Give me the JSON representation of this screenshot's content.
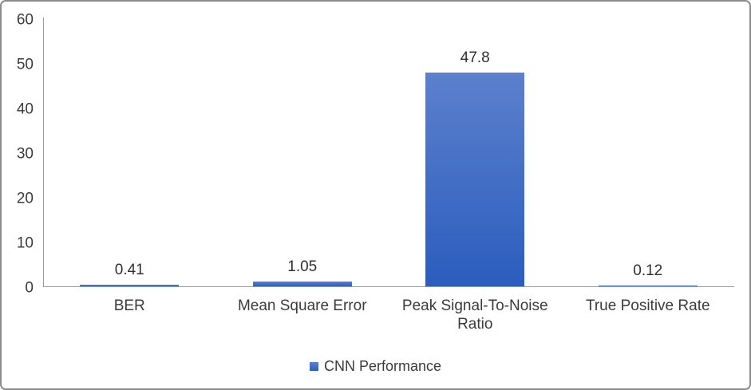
{
  "chart_data": {
    "type": "bar",
    "title": "",
    "categories": [
      "BER",
      "Mean Square Error",
      "Peak Signal-To-Noise Ratio",
      "True Positive Rate"
    ],
    "series": [
      {
        "name": "CNN Performance",
        "values": [
          0.41,
          1.05,
          47.8,
          0.12
        ]
      }
    ],
    "data_labels": [
      "0.41",
      "1.05",
      "47.8",
      "0.12"
    ],
    "xlabel": "",
    "ylabel": "",
    "ylim": [
      0,
      60
    ],
    "yticks": [
      0,
      10,
      20,
      30,
      40,
      50,
      60
    ],
    "grid": false,
    "legend": {
      "position": "bottom",
      "label": "CNN Performance"
    },
    "colors": {
      "bar_gradient_top": "#5c80cd",
      "bar_gradient_bottom": "#2b5dbe",
      "axis_line": "#9b9b9b",
      "text": "#3b3b3b",
      "frame_border": "#8c8c8c"
    }
  }
}
